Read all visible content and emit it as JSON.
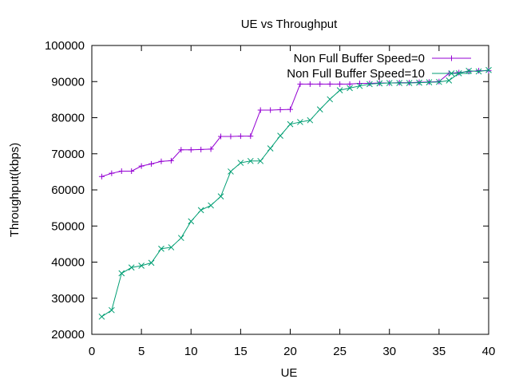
{
  "chart_data": {
    "type": "line",
    "title": "UE vs Throughput",
    "xlabel": "UE",
    "ylabel": "Throughput(kbps)",
    "xlim": [
      0,
      40
    ],
    "ylim": [
      20000,
      100000
    ],
    "xticks": [
      0,
      5,
      10,
      15,
      20,
      25,
      30,
      35,
      40
    ],
    "yticks": [
      20000,
      30000,
      40000,
      50000,
      60000,
      70000,
      80000,
      90000,
      100000
    ],
    "grid": false,
    "legend_position": "top-right",
    "series": [
      {
        "name": "Non Full Buffer Speed=0",
        "color": "#9400d3",
        "marker": "plus",
        "x": [
          1,
          2,
          3,
          4,
          5,
          6,
          7,
          8,
          9,
          10,
          11,
          12,
          13,
          14,
          15,
          16,
          17,
          18,
          19,
          20,
          21,
          22,
          23,
          24,
          25,
          26,
          27,
          28,
          29,
          30,
          31,
          32,
          33,
          34,
          35,
          36,
          37,
          38,
          39,
          40
        ],
        "values": [
          63700,
          64600,
          65200,
          65200,
          66600,
          67200,
          67900,
          68100,
          71100,
          71100,
          71200,
          71300,
          74800,
          74800,
          74900,
          74900,
          82100,
          82100,
          82200,
          82300,
          89300,
          89300,
          89300,
          89300,
          89300,
          89300,
          89500,
          89500,
          89600,
          89600,
          89700,
          89700,
          89800,
          89900,
          90000,
          92300,
          92500,
          92800,
          93000,
          93000
        ]
      },
      {
        "name": "Non Full Buffer Speed=10",
        "color": "#009e73",
        "marker": "x",
        "x": [
          1,
          2,
          3,
          4,
          5,
          6,
          7,
          8,
          9,
          10,
          11,
          12,
          13,
          14,
          15,
          16,
          17,
          18,
          19,
          20,
          21,
          22,
          23,
          24,
          25,
          26,
          27,
          28,
          29,
          30,
          31,
          32,
          33,
          34,
          35,
          36,
          37,
          38,
          39,
          40
        ],
        "values": [
          24900,
          26700,
          36900,
          38500,
          39000,
          39800,
          43700,
          44100,
          46700,
          51300,
          54400,
          55700,
          58200,
          65100,
          67500,
          68000,
          68000,
          71500,
          75000,
          78200,
          78800,
          79300,
          82300,
          85100,
          87600,
          88200,
          88800,
          89300,
          89500,
          89600,
          89600,
          89600,
          89700,
          89800,
          89900,
          90300,
          92300,
          93000,
          92800,
          93200
        ]
      }
    ]
  }
}
